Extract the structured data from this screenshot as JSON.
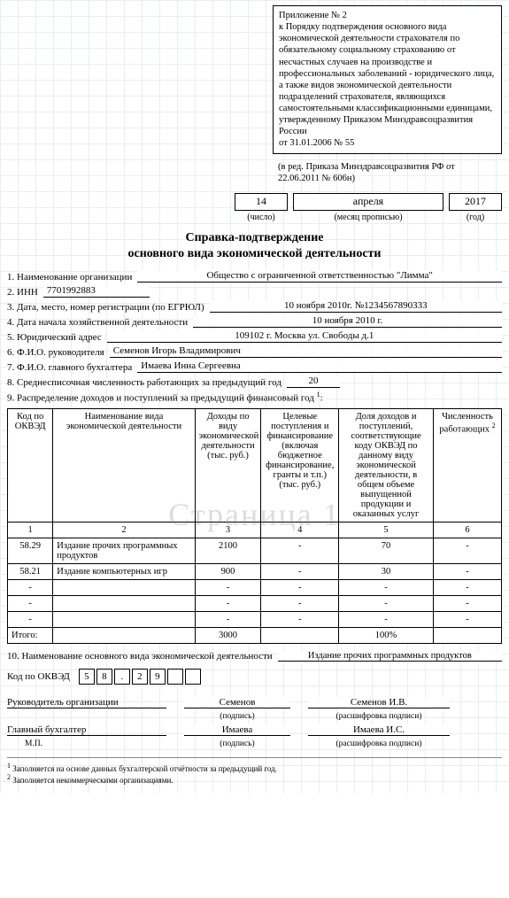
{
  "header_block": "Приложение № 2\nк Порядку подтверждения основного вида экономической деятельности страхователя по обязательному социальному страхованию от несчастных случаев на производстве и профессиональных заболеваний - юридического лица, а также видов экономической деятельности подразделений страхователя, являющихся самостоятельными классификационными единицами, утвержденному Приказом Минздравсоцразвития России\nот 31.01.2006 № 55",
  "header_block2": "(в ред. Приказа Минздравсоцразвития РФ от 22.06.2011 № 606н)",
  "date": {
    "day": "14",
    "month": "апреля",
    "year": "2017"
  },
  "date_labels": {
    "day": "(число)",
    "month": "(месяц прописью)",
    "year": "(год)"
  },
  "title": "Справка-подтверждение",
  "subtitle": "основного вида экономической деятельности",
  "fields": {
    "f1_label": "1. Наименование организации",
    "f1_value": "Общество с ограниченной ответственностью \"Лимма\"",
    "f2_label": "2. ИНН",
    "f2_value": "7701992883",
    "f3_label": "3. Дата, место, номер регистрации (по ЕГРЮЛ)",
    "f3_value": "10 ноября 2010г. №1234567890333",
    "f4_label": "4. Дата начала хозяйственной деятельности",
    "f4_value": "10 ноября 2010 г.",
    "f5_label": "5. Юридический адрес",
    "f5_value": "109102 г. Москва ул. Свободы д.1",
    "f6_label": "6. Ф.И.О. руководителя",
    "f6_value": "Семенов Игорь Владимирович",
    "f7_label": "7. Ф.И.О. главного бухгалтера",
    "f7_value": "Имаева Инна Сергеевна",
    "f8_label": "8. Среднесписочная численность работающих за предыдущий год",
    "f8_value": "20",
    "f9_label": "9. Распределение доходов и поступлений за предыдущий финансовый год"
  },
  "watermark": "Страница 1",
  "table": {
    "headers": [
      "Код по ОКВЭД",
      "Наименование вида экономической деятельности",
      "Доходы по виду экономической деятельности (тыс. руб.)",
      "Целевые поступления и финансирование (включая бюджетное финансирование, гранты и т.п.) (тыс. руб.)",
      "Доля доходов и поступлений, соответствующие коду ОКВЭД по данному виду экономической деятельности, в общем объеме выпущенной продукции и оказанных услуг",
      "Численность работающих"
    ],
    "col_widths": [
      "48px",
      "150px",
      "70px",
      "82px",
      "100px",
      "72px"
    ],
    "numrow": [
      "1",
      "2",
      "3",
      "4",
      "5",
      "6"
    ],
    "rows": [
      [
        "58.29",
        "Издание прочих программных продуктов",
        "2100",
        "-",
        "70",
        "-"
      ],
      [
        "58.21",
        "Издание компьютерных игр",
        "900",
        "-",
        "30",
        "-"
      ],
      [
        "-",
        "",
        "-",
        "-",
        "-",
        "-"
      ],
      [
        "-",
        "",
        "-",
        "-",
        "-",
        "-"
      ],
      [
        "-",
        "",
        "-",
        "-",
        "-",
        "-"
      ]
    ],
    "total_label": "Итого:",
    "total": [
      "",
      "",
      "3000",
      "",
      "100%",
      ""
    ]
  },
  "sec10_label": "10. Наименование основного вида экономической деятельности",
  "sec10_value": "Издание прочих программных продуктов",
  "okved_label": "Код по ОКВЭД",
  "okved": [
    "5",
    "8",
    ".",
    "2",
    "9",
    "",
    ""
  ],
  "sig": {
    "role1": "Руководитель организации",
    "sig1": "Семенов",
    "dec1": "Семенов И.В.",
    "role2": "Главный бухгалтер",
    "sig2": "Имаева",
    "dec2": "Имаева И.С.",
    "mp": "М.П.",
    "lbl_sig": "(подпись)",
    "lbl_dec": "(расшифровка подписи)"
  },
  "footnotes": {
    "f1": "Заполняется на основе данных бухгалтерской отчётности за предыдущий год.",
    "f2": "Заполняется некоммерческими организациями."
  }
}
